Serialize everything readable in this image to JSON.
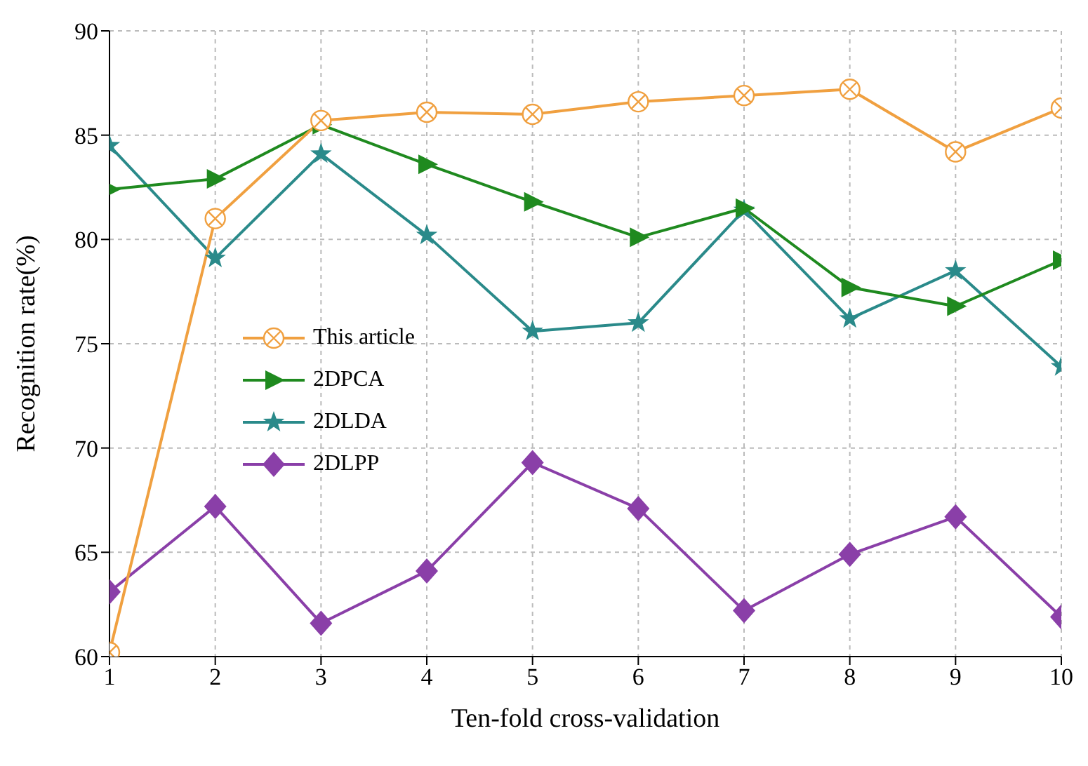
{
  "chart_data": {
    "type": "line",
    "xlabel": "Ten-fold cross-validation",
    "ylabel": "Recognition rate(%)",
    "x": [
      1,
      2,
      3,
      4,
      5,
      6,
      7,
      8,
      9,
      10
    ],
    "xlim": [
      1,
      10
    ],
    "xticks": [
      1,
      2,
      3,
      4,
      5,
      6,
      7,
      8,
      9,
      10
    ],
    "ylim": [
      60,
      90
    ],
    "yticks": [
      60,
      65,
      70,
      75,
      80,
      85,
      90
    ],
    "grid": true,
    "legend": "left",
    "line_style": "solid",
    "series": [
      {
        "name": "This article",
        "color": "#f0a040",
        "marker": "circle",
        "values": [
          60.2,
          81.0,
          85.7,
          86.1,
          86.0,
          86.6,
          86.9,
          87.2,
          84.2,
          86.3
        ]
      },
      {
        "name": "2DPCA",
        "color": "#1f8a1f",
        "marker": "triangle",
        "values": [
          82.4,
          82.9,
          85.5,
          83.6,
          81.8,
          80.1,
          81.5,
          77.7,
          76.8,
          79.0
        ]
      },
      {
        "name": "2DLDA",
        "color": "#2a8a8a",
        "marker": "star",
        "values": [
          84.5,
          79.1,
          84.1,
          80.2,
          75.6,
          76.0,
          81.4,
          76.2,
          78.5,
          73.9
        ]
      },
      {
        "name": "2DLPP",
        "color": "#8a3fa8",
        "marker": "diamond",
        "values": [
          63.1,
          67.2,
          61.6,
          64.1,
          69.3,
          67.1,
          62.2,
          64.9,
          66.7,
          61.9
        ]
      }
    ]
  }
}
